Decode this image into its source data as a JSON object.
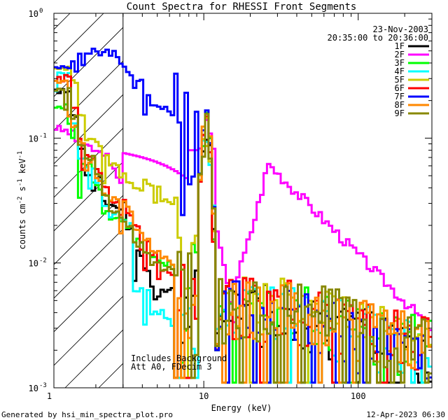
{
  "chart_data": {
    "type": "line",
    "title": "Count Spectra for RHESSI Front Segments",
    "xlabel": "Energy (keV)",
    "ylabel": "counts cm-2 s-1 keV-1",
    "ylabel_parts": [
      "counts cm",
      "-2",
      " s",
      "-1",
      " keV",
      "-1"
    ],
    "x_scale": "log",
    "y_scale": "log",
    "xlim": [
      1.07,
      300
    ],
    "ylim": [
      0.001,
      1
    ],
    "x_ticks": [
      {
        "value": 1,
        "label": "1"
      },
      {
        "value": 10,
        "label": "10"
      },
      {
        "value": 100,
        "label": "100"
      }
    ],
    "y_ticks": [
      {
        "value": 1,
        "base": "10",
        "exp": "0"
      },
      {
        "value": 0.1,
        "base": "10",
        "exp": "-1"
      },
      {
        "value": 0.01,
        "base": "10",
        "exp": "-2"
      },
      {
        "value": 0.001,
        "base": "10",
        "exp": "-3"
      }
    ],
    "date": "23-Nov-2003",
    "time_range": "20:35:00 to 20:36:00",
    "annotations": [
      "Includes Background",
      "Att A0, FDecim 3"
    ],
    "hatched_region_xmax": 3.0,
    "footer_left": "Generated by hsi_min_spectra_plot.pro",
    "footer_right": "12-Apr-2023 06:30",
    "series": [
      {
        "name": "1F",
        "color": "#000000",
        "low": [
          0.24,
          0.24,
          0.15,
          0.08,
          0.05,
          0.05,
          0.03,
          0.028,
          0.028,
          0.018,
          0.012,
          0.009,
          0.0065,
          0.006,
          0.006
        ],
        "flare": 1,
        "mid": 0.004,
        "tail": 0.0036,
        "fall": 0.4,
        "seed": 11
      },
      {
        "name": "2F",
        "color": "#ff00ff",
        "low": [
          0.12,
          0.115,
          0.11,
          0.095,
          0.09,
          0.085,
          0.08,
          0.078,
          0.076,
          0.076,
          0.072,
          0.06,
          0.055,
          0.05,
          0.045
        ],
        "flare": 0,
        "mid": 0,
        "tail": 0,
        "fall": 0,
        "seed": 0
      },
      {
        "name": "3F",
        "color": "#00ff00",
        "low": [
          0.18,
          0.18,
          0.12,
          0.06,
          0.06,
          0.04,
          0.025,
          0.023,
          0.022,
          0.02,
          0.015,
          0.012,
          0.011,
          0.01,
          0.01
        ],
        "flare": 1,
        "mid": 0.0042,
        "tail": 0.0042,
        "fall": 0.45,
        "seed": 23
      },
      {
        "name": "4F",
        "color": "#00ffff",
        "low": [
          0.33,
          0.33,
          0.13,
          0.07,
          0.06,
          0.045,
          0.03,
          0.024,
          0.022,
          0.02,
          0.006,
          0.006,
          0.004,
          0.004,
          0.0035
        ],
        "flare": 1,
        "mid": 0.0038,
        "tail": 0.004,
        "fall": 0.5,
        "seed": 37
      },
      {
        "name": "5F",
        "color": "#cccc00",
        "low": [
          0.36,
          0.36,
          0.28,
          0.16,
          0.1,
          0.09,
          0.07,
          0.06,
          0.05,
          0.045,
          0.04,
          0.045,
          0.04,
          0.032,
          0.03
        ],
        "flare": 1,
        "mid": 0.0045,
        "tail": 0.0042,
        "fall": 0.35,
        "seed": 41
      },
      {
        "name": "6F",
        "color": "#ff0000",
        "low": [
          0.3,
          0.3,
          0.17,
          0.1,
          0.07,
          0.055,
          0.04,
          0.03,
          0.032,
          0.025,
          0.02,
          0.015,
          0.012,
          0.009,
          0.008
        ],
        "flare": 1,
        "mid": 0.0045,
        "tail": 0.0042,
        "fall": 0.45,
        "seed": 53
      },
      {
        "name": "7F",
        "color": "#0000ff",
        "low": [
          0.38,
          0.38,
          0.4,
          0.47,
          0.5,
          0.52,
          0.5,
          0.46,
          0.38,
          0.33,
          0.28,
          0.22,
          0.18,
          0.17,
          0.16
        ],
        "flare": 1,
        "mid": 0.0042,
        "tail": 0.0035,
        "fall": 0.55,
        "seed": 67
      },
      {
        "name": "8F",
        "color": "#ff8800",
        "low": [
          0.28,
          0.28,
          0.12,
          0.09,
          0.065,
          0.045,
          0.035,
          0.033,
          0.03,
          0.027,
          0.018,
          0.015,
          0.012,
          0.011,
          0.01
        ],
        "flare": 1,
        "mid": 0.0042,
        "tail": 0.0042,
        "fall": 0.45,
        "seed": 79
      },
      {
        "name": "9F",
        "color": "#888800",
        "low": [
          0.25,
          0.25,
          0.15,
          0.085,
          0.07,
          0.05,
          0.035,
          0.026,
          0.022,
          0.02,
          0.014,
          0.012,
          0.01,
          0.009,
          0.009
        ],
        "flare": 1,
        "mid": 0.0045,
        "tail": 0.0045,
        "fall": 0.4,
        "seed": 97
      }
    ]
  }
}
